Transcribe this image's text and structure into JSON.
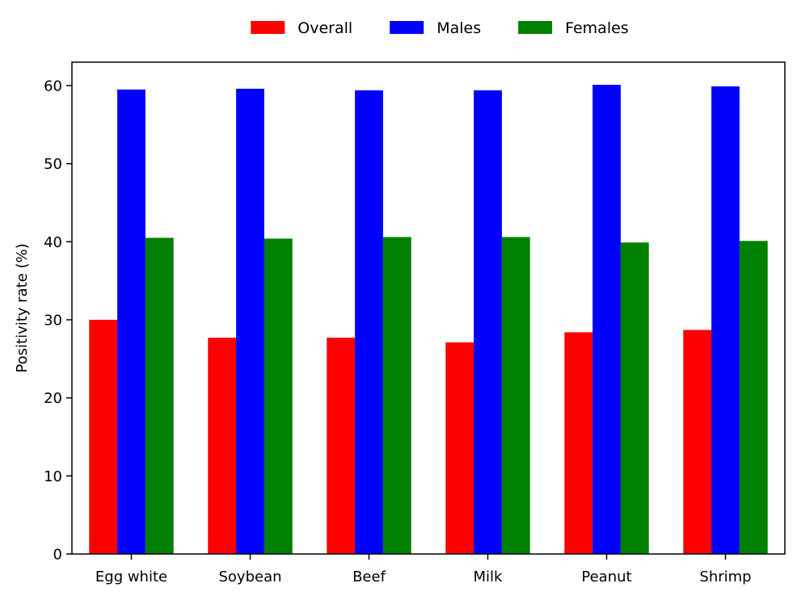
{
  "chart_data": {
    "type": "bar",
    "title": "",
    "xlabel": "",
    "ylabel": "Positivity rate (%)",
    "ylim": [
      0,
      63
    ],
    "yticks": [
      0,
      10,
      20,
      30,
      40,
      50,
      60
    ],
    "grid": false,
    "legend_position": "top-center",
    "categories": [
      "Egg white",
      "Soybean",
      "Beef",
      "Milk",
      "Peanut",
      "Shrimp"
    ],
    "series": [
      {
        "name": "Overall",
        "color": "#ff0000",
        "values": [
          30.0,
          27.7,
          27.7,
          27.1,
          28.4,
          28.7
        ]
      },
      {
        "name": "Males",
        "color": "#0000ff",
        "values": [
          59.5,
          59.6,
          59.4,
          59.4,
          60.1,
          59.9
        ]
      },
      {
        "name": "Females",
        "color": "#008000",
        "values": [
          40.5,
          40.4,
          40.6,
          40.6,
          39.9,
          40.1
        ]
      }
    ]
  }
}
